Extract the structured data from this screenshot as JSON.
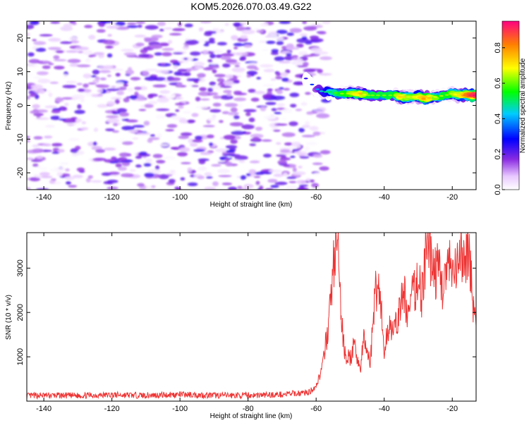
{
  "title": "KOM5.2026.070.03.49.G22",
  "colors": {
    "snr_line": "#ee3333",
    "axis": "#000000"
  },
  "chart_data": [
    {
      "type": "heatmap",
      "title": "KOM5.2026.070.03.49.G22",
      "xlabel": "Height of straight line (km)",
      "ylabel": "Frequency (Hz)",
      "xlim": [
        -145,
        -13
      ],
      "ylim": [
        -25,
        25
      ],
      "x_ticks": [
        -140,
        -120,
        -100,
        -80,
        -60,
        -40,
        -20
      ],
      "y_ticks": [
        -20,
        -10,
        0,
        10,
        20
      ],
      "noise_region": {
        "x_range": [
          -145,
          -57
        ],
        "freq_range": [
          -25,
          25
        ],
        "amplitude_range": [
          0.0,
          0.25
        ]
      },
      "signal_band": {
        "x": [
          -63,
          -60,
          -58,
          -56,
          -53,
          -50,
          -47,
          -45,
          -43,
          -40,
          -37,
          -35,
          -33,
          -30,
          -28,
          -25,
          -22,
          -20,
          -18,
          -15,
          -13
        ],
        "freq": [
          8,
          5,
          4,
          4,
          3.5,
          3.5,
          3.5,
          3,
          3,
          3,
          3,
          2.5,
          2.5,
          2.5,
          2,
          2.5,
          3,
          3.5,
          3,
          3,
          3
        ],
        "amplitude": [
          0.2,
          0.35,
          0.45,
          0.5,
          0.6,
          0.65,
          0.75,
          0.6,
          0.6,
          0.6,
          0.6,
          0.75,
          0.65,
          0.7,
          0.8,
          0.65,
          0.6,
          0.65,
          0.7,
          0.9,
          0.95
        ]
      },
      "colorbar": {
        "label": "Normalized spectral amplitude",
        "range": [
          0.0,
          0.95
        ],
        "ticks": [
          "0.0",
          "0.2",
          "0.4",
          "0.6",
          "0.8"
        ]
      }
    },
    {
      "type": "line",
      "xlabel": "Height of straight line (km)",
      "ylabel": "SNR (10 * v/v)",
      "xlim": [
        -145,
        -13
      ],
      "ylim": [
        0,
        3800
      ],
      "x_ticks": [
        -140,
        -120,
        -100,
        -80,
        -60,
        -40,
        -20
      ],
      "y_ticks": [
        1000,
        2000,
        3000
      ],
      "series": [
        {
          "name": "SNR",
          "x": [
            -145,
            -140,
            -130,
            -120,
            -110,
            -100,
            -90,
            -80,
            -70,
            -62,
            -60,
            -58,
            -57,
            -56,
            -55,
            -54,
            -53.5,
            -53,
            -52.5,
            -52,
            -51,
            -50,
            -49,
            -48,
            -47,
            -46,
            -45,
            -44,
            -43,
            -42,
            -41,
            -40,
            -39,
            -38,
            -37,
            -36,
            -35,
            -34,
            -33,
            -32,
            -31,
            -30,
            -29,
            -28,
            -27,
            -26,
            -25,
            -24,
            -23,
            -22,
            -21,
            -20,
            -19,
            -18,
            -17,
            -16,
            -15,
            -14,
            -13
          ],
          "y": [
            120,
            130,
            125,
            140,
            130,
            150,
            130,
            130,
            150,
            200,
            350,
            800,
            1400,
            2000,
            3000,
            3600,
            3200,
            2500,
            1800,
            1300,
            1000,
            950,
            1200,
            1050,
            700,
            1400,
            1100,
            900,
            2200,
            2700,
            2300,
            1000,
            1600,
            1800,
            1500,
            1900,
            2200,
            2400,
            1900,
            2300,
            2500,
            2800,
            2400,
            3100,
            3400,
            3200,
            2900,
            3000,
            2600,
            2800,
            3100,
            2700,
            2900,
            3100,
            3300,
            3200,
            3500,
            2200,
            1700
          ]
        }
      ]
    }
  ]
}
